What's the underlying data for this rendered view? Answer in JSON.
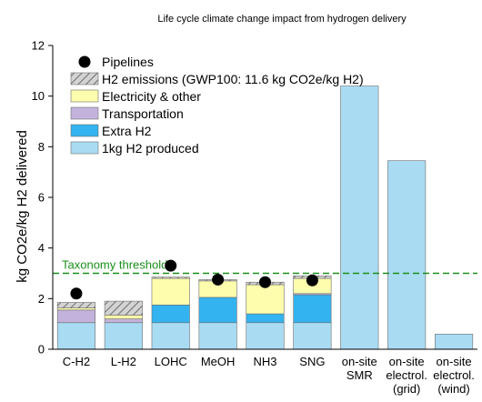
{
  "chart_data": {
    "type": "bar",
    "title": "Life cycle climate change impact from hydrogen delivery",
    "ylabel": "kg CO2e/kg H2 delivered",
    "ylim": [
      0,
      12
    ],
    "yticks": [
      0,
      2,
      4,
      6,
      8,
      10,
      12
    ],
    "categories": [
      {
        "lines": [
          "C-H2"
        ]
      },
      {
        "lines": [
          "L-H2"
        ]
      },
      {
        "lines": [
          "LOHC"
        ]
      },
      {
        "lines": [
          "MeOH"
        ]
      },
      {
        "lines": [
          "NH3"
        ]
      },
      {
        "lines": [
          "SNG"
        ]
      },
      {
        "lines": [
          "on-site",
          "SMR"
        ]
      },
      {
        "lines": [
          "on-site",
          "electrol.",
          "(grid)"
        ]
      },
      {
        "lines": [
          "on-site",
          "electrol.",
          "(wind)"
        ]
      }
    ],
    "series": [
      {
        "name": "1kg H2 produced",
        "color": "#a9dcf3",
        "values": [
          1.05,
          1.05,
          1.05,
          1.05,
          1.05,
          1.05,
          10.4,
          7.45,
          0.6
        ]
      },
      {
        "name": "Extra H2",
        "color": "#33b3f0",
        "values": [
          0,
          0,
          0.7,
          1.0,
          0.35,
          1.1,
          0,
          0,
          0
        ]
      },
      {
        "name": "Transportation",
        "color": "#c3b3dc",
        "values": [
          0.5,
          0.15,
          0,
          0,
          0,
          0.05,
          0,
          0,
          0
        ]
      },
      {
        "name": "Electricity & other",
        "color": "#fdfdad",
        "values": [
          0.08,
          0.15,
          1.05,
          0.65,
          1.15,
          0.6,
          0,
          0,
          0
        ]
      },
      {
        "name": "H2 emissions (GWP100: 11.6 kg CO2e/kg H2)",
        "color": "#d3d3d3",
        "hatch": true,
        "values": [
          0.22,
          0.55,
          0.05,
          0.05,
          0.1,
          0.1,
          0,
          0,
          0
        ]
      }
    ],
    "pipelines": {
      "name": "Pipelines",
      "values": [
        2.2,
        null,
        3.3,
        2.75,
        2.65,
        2.72,
        null,
        null,
        null
      ]
    },
    "threshold": {
      "label": "Taxonomy threshold",
      "value": 3.0,
      "color": "#1a8f1a"
    },
    "legend_position": "top-left",
    "grid": false
  }
}
